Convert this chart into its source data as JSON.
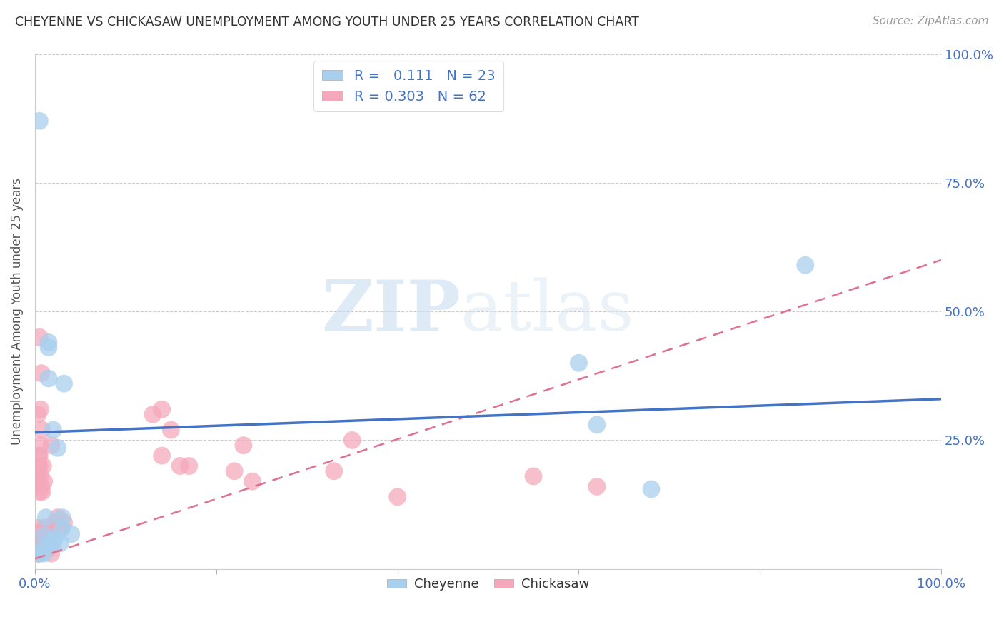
{
  "title": "CHEYENNE VS CHICKASAW UNEMPLOYMENT AMONG YOUTH UNDER 25 YEARS CORRELATION CHART",
  "source": "Source: ZipAtlas.com",
  "ylabel": "Unemployment Among Youth under 25 years",
  "cheyenne_color": "#A8D0EE",
  "chickasaw_color": "#F5A8BC",
  "cheyenne_line_color": "#4472C4",
  "chickasaw_line_color": "#E07090",
  "chickasaw_line_dash_color": "#E8A0B0",
  "cheyenne_R": 0.111,
  "cheyenne_N": 23,
  "chickasaw_R": 0.303,
  "chickasaw_N": 62,
  "cheyenne_x": [
    0.02,
    0.025,
    0.015,
    0.03,
    0.01,
    0.02,
    0.04,
    0.022,
    0.03,
    0.018,
    0.028,
    0.032,
    0.015,
    0.015,
    0.012,
    0.005,
    0.01,
    0.008,
    0.6,
    0.62,
    0.68,
    0.005,
    0.85
  ],
  "cheyenne_y": [
    0.27,
    0.235,
    0.44,
    0.1,
    0.065,
    0.05,
    0.068,
    0.06,
    0.08,
    0.055,
    0.05,
    0.36,
    0.43,
    0.37,
    0.1,
    0.03,
    0.03,
    0.04,
    0.4,
    0.28,
    0.155,
    0.87,
    0.59
  ],
  "chickasaw_x": [
    0.003,
    0.005,
    0.007,
    0.01,
    0.008,
    0.004,
    0.012,
    0.015,
    0.018,
    0.022,
    0.025,
    0.028,
    0.032,
    0.004,
    0.008,
    0.01,
    0.006,
    0.009,
    0.005,
    0.004,
    0.008,
    0.01,
    0.015,
    0.018,
    0.012,
    0.005,
    0.004,
    0.009,
    0.011,
    0.008,
    0.018,
    0.003,
    0.005,
    0.007,
    0.003,
    0.006,
    0.008,
    0.004,
    0.003,
    0.006,
    0.004,
    0.005,
    0.003,
    0.007,
    0.005,
    0.004,
    0.003,
    0.006,
    0.13,
    0.14,
    0.15,
    0.14,
    0.22,
    0.23,
    0.24,
    0.17,
    0.16,
    0.33,
    0.35,
    0.55,
    0.62,
    0.4
  ],
  "chickasaw_y": [
    0.05,
    0.04,
    0.06,
    0.05,
    0.04,
    0.03,
    0.07,
    0.06,
    0.08,
    0.09,
    0.1,
    0.08,
    0.09,
    0.07,
    0.15,
    0.17,
    0.18,
    0.2,
    0.22,
    0.05,
    0.06,
    0.04,
    0.04,
    0.03,
    0.05,
    0.03,
    0.04,
    0.05,
    0.08,
    0.06,
    0.24,
    0.048,
    0.45,
    0.38,
    0.3,
    0.31,
    0.27,
    0.22,
    0.19,
    0.24,
    0.17,
    0.2,
    0.2,
    0.16,
    0.15,
    0.08,
    0.03,
    0.05,
    0.3,
    0.31,
    0.27,
    0.22,
    0.19,
    0.24,
    0.17,
    0.2,
    0.2,
    0.19,
    0.25,
    0.18,
    0.16,
    0.14
  ],
  "background_color": "#FFFFFF",
  "watermark_zip": "ZIP",
  "watermark_atlas": "atlas",
  "ytick_labels_right": [
    "100.0%",
    "75.0%",
    "50.0%",
    "25.0%"
  ],
  "ytick_positions_right": [
    1.0,
    0.75,
    0.5,
    0.25
  ],
  "xlim": [
    0.0,
    1.0
  ],
  "ylim": [
    0.0,
    1.0
  ],
  "cheyenne_regline_x0": 0.0,
  "cheyenne_regline_y0": 0.265,
  "cheyenne_regline_x1": 1.0,
  "cheyenne_regline_y1": 0.33,
  "chickasaw_regline_x0": 0.0,
  "chickasaw_regline_y0": 0.02,
  "chickasaw_regline_x1": 1.0,
  "chickasaw_regline_y1": 0.6
}
